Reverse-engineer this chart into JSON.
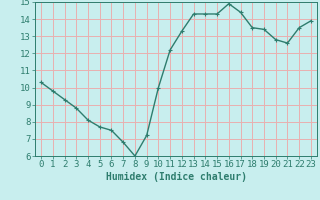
{
  "x": [
    0,
    1,
    2,
    3,
    4,
    5,
    6,
    7,
    8,
    9,
    10,
    11,
    12,
    13,
    14,
    15,
    16,
    17,
    18,
    19,
    20,
    21,
    22,
    23
  ],
  "y": [
    10.3,
    9.8,
    9.3,
    8.8,
    8.1,
    7.7,
    7.5,
    6.8,
    6.0,
    7.2,
    10.0,
    12.2,
    13.3,
    14.3,
    14.3,
    14.3,
    14.9,
    14.4,
    13.5,
    13.4,
    12.8,
    12.6,
    13.5,
    13.9
  ],
  "line_color": "#2e7d6e",
  "marker": "+",
  "marker_size": 3,
  "background_color": "#c8eeee",
  "grid_color": "#e8b0b0",
  "xlabel": "Humidex (Indice chaleur)",
  "ylim": [
    6,
    15
  ],
  "xlim": [
    -0.5,
    23.5
  ],
  "yticks": [
    6,
    7,
    8,
    9,
    10,
    11,
    12,
    13,
    14,
    15
  ],
  "xticks": [
    0,
    1,
    2,
    3,
    4,
    5,
    6,
    7,
    8,
    9,
    10,
    11,
    12,
    13,
    14,
    15,
    16,
    17,
    18,
    19,
    20,
    21,
    22,
    23
  ],
  "tick_color": "#2e7d6e",
  "label_color": "#2e7d6e",
  "font_size": 6.5,
  "linewidth": 1.0
}
